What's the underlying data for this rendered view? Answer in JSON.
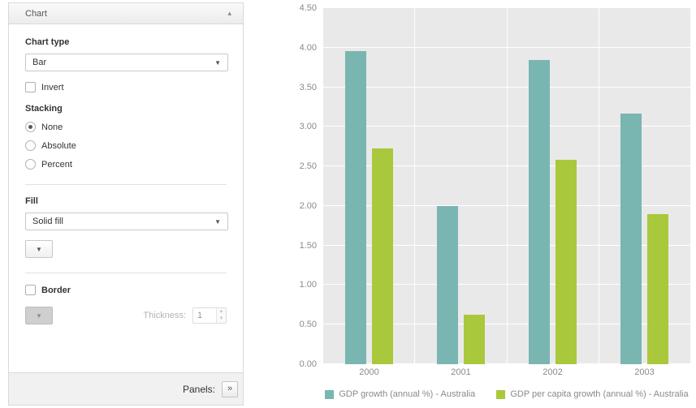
{
  "sidebar": {
    "title": "Chart",
    "icons": {
      "collapse": "▴",
      "dropdown": "▼",
      "spin_up": "▲",
      "spin_down": "▼",
      "expand": "»"
    },
    "chart_type": {
      "label": "Chart type",
      "value": "Bar"
    },
    "invert": {
      "label": "Invert",
      "checked": false
    },
    "stacking": {
      "label": "Stacking",
      "selected": "None",
      "options": [
        "None",
        "Absolute",
        "Percent"
      ]
    },
    "fill": {
      "label": "Fill",
      "value": "Solid fill"
    },
    "border": {
      "label": "Border",
      "checked": false
    },
    "thickness": {
      "label": "Thickness:",
      "value": "1"
    },
    "footer": {
      "panels_label": "Panels:"
    }
  },
  "chart_data": {
    "type": "bar",
    "categories": [
      "2000",
      "2001",
      "2002",
      "2003"
    ],
    "series": [
      {
        "name": "GDP growth (annual %) - Australia",
        "color": "#79b6b1",
        "values": [
          3.96,
          2.0,
          3.84,
          3.17
        ]
      },
      {
        "name": "GDP per capita growth (annual %) - Australia",
        "color": "#a9c83b",
        "values": [
          2.73,
          0.63,
          2.58,
          1.9
        ]
      }
    ],
    "ylim": [
      0,
      4.5
    ],
    "ytick_step": 0.5,
    "ytick_decimals": 2,
    "grid": true,
    "plot_background": "#e9e9e9",
    "gridline_color": "#ffffff",
    "legend_position": "bottom"
  }
}
